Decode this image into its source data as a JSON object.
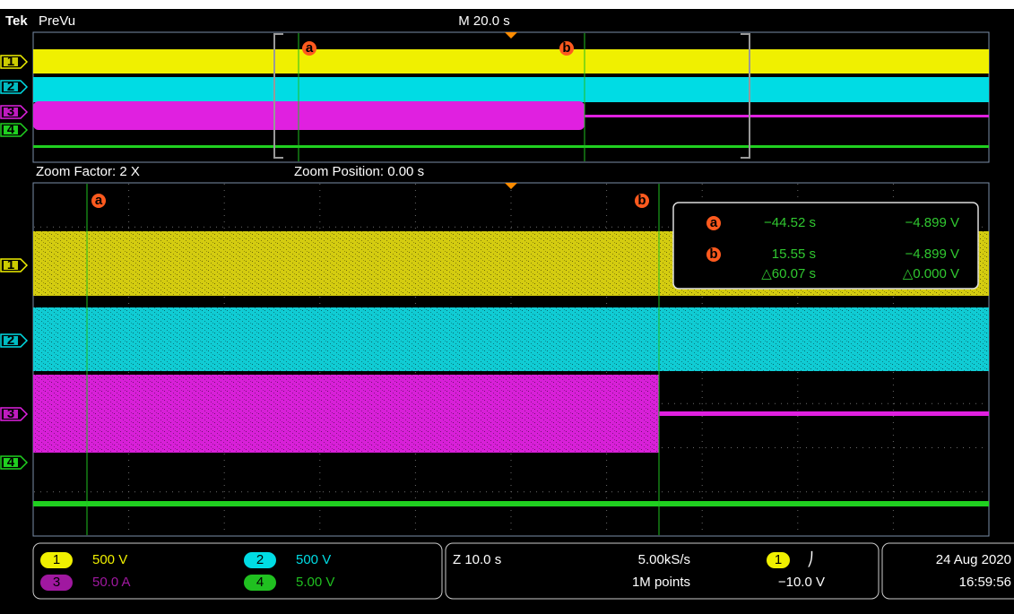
{
  "header": {
    "brand": "Tek",
    "mode": "PreVu",
    "timebase": "M 20.0 s"
  },
  "overview": {
    "channels": [
      "1",
      "2",
      "3",
      "4"
    ],
    "cursors": [
      "a",
      "b"
    ]
  },
  "zoom": {
    "factor": "Zoom Factor: 2 X",
    "position": "Zoom Position: 0.00 s",
    "channels": [
      "1",
      "2",
      "3",
      "4"
    ],
    "cursors": [
      "a",
      "b"
    ]
  },
  "readout": {
    "cursor_a": {
      "label": "a",
      "time": "−44.52 s",
      "volt": "−4.899 V"
    },
    "cursor_b": {
      "label": "b",
      "time": "15.55 s",
      "volt": "−4.899 V"
    },
    "delta": {
      "time": "△60.07 s",
      "volt": "△0.000 V"
    }
  },
  "status": {
    "channels": [
      {
        "id": "1",
        "scale": "500 V"
      },
      {
        "id": "2",
        "scale": "500 V"
      },
      {
        "id": "3",
        "scale": "50.0 A"
      },
      {
        "id": "4",
        "scale": "5.00 V"
      }
    ],
    "zoom": "Z 10.0 s",
    "rate": "5.00kS/s",
    "points": "1M points",
    "trigger": {
      "source": "1",
      "slope": "⎠",
      "level": "−10.0 V"
    },
    "date": "24 Aug 2020",
    "time": "16:59:56"
  }
}
